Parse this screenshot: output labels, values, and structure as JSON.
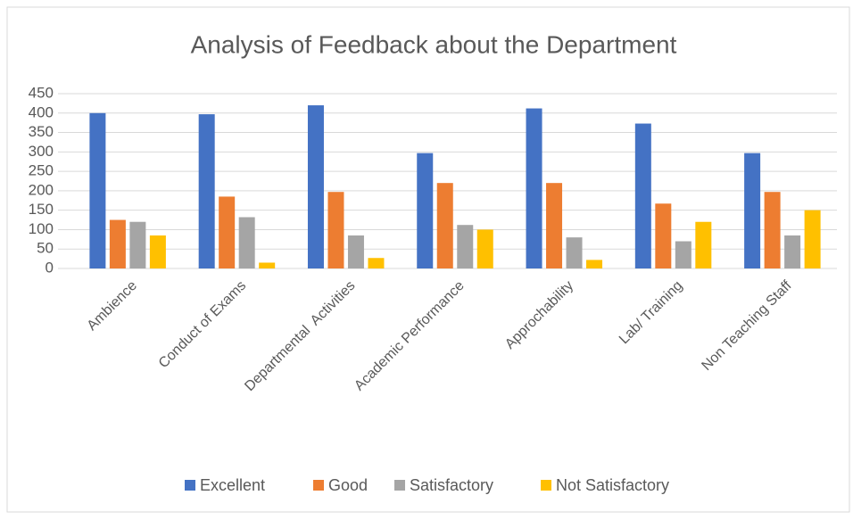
{
  "chart_data": {
    "type": "bar",
    "title": "Analysis of Feedback about the Department",
    "categories": [
      "Ambience",
      "Conduct of Exams",
      "Departmental  Activities",
      "Academic Performance",
      "Approchability",
      "Lab/ Training",
      "Non Teaching Staff"
    ],
    "series": [
      {
        "name": "Excellent",
        "color": "#4472c4",
        "values": [
          400,
          397,
          420,
          297,
          412,
          373,
          297
        ]
      },
      {
        "name": "Good",
        "color": "#ed7d31",
        "values": [
          125,
          185,
          197,
          220,
          220,
          167,
          197
        ]
      },
      {
        "name": "Satisfactory",
        "color": "#a5a5a5",
        "values": [
          120,
          132,
          85,
          112,
          80,
          70,
          85
        ]
      },
      {
        "name": "Not Satisfactory",
        "color": "#ffc000",
        "values": [
          85,
          15,
          27,
          100,
          22,
          120,
          150
        ]
      }
    ],
    "ylim": [
      0,
      450
    ],
    "yticks": [
      0,
      50,
      100,
      150,
      200,
      250,
      300,
      350,
      400,
      450
    ],
    "grid": true,
    "legend": "bottom"
  }
}
